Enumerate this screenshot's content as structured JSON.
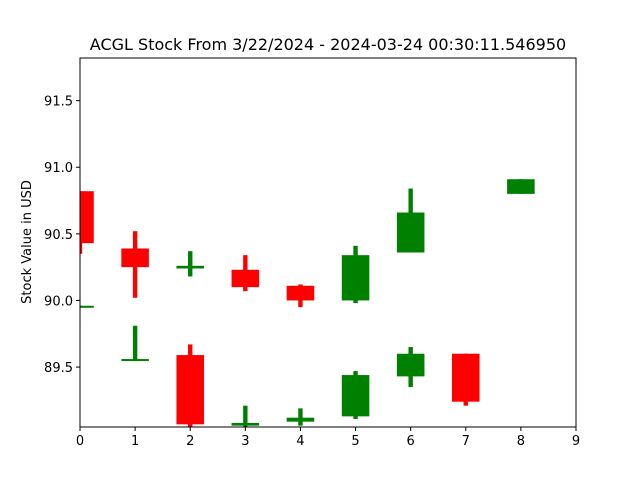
{
  "chart_data": {
    "type": "candlestick",
    "title": "ACGL Stock From 3/22/2024 - 2024-03-24 00:30:11.546950",
    "xlabel": "",
    "ylabel": "Stock Value in USD",
    "xlim": [
      0,
      9
    ],
    "ylim": [
      89.05,
      91.82
    ],
    "x_ticks": [
      "0",
      "1",
      "2",
      "3",
      "4",
      "5",
      "6",
      "7",
      "8",
      "9"
    ],
    "y_ticks": [
      "89.5",
      "90.0",
      "90.5",
      "91.0",
      "91.5"
    ],
    "grid": false,
    "colors": {
      "up": "#008000",
      "down": "#ff0000"
    },
    "candles": [
      {
        "x": 0,
        "open": 90.82,
        "close": 90.43,
        "high": 90.82,
        "low": 90.35,
        "color": "down"
      },
      {
        "x": 0,
        "open": 89.95,
        "close": 89.96,
        "high": 89.96,
        "low": 89.95,
        "color": "up"
      },
      {
        "x": 1,
        "open": 90.39,
        "close": 90.25,
        "high": 90.52,
        "low": 90.02,
        "color": "down"
      },
      {
        "x": 1,
        "open": 89.55,
        "close": 89.56,
        "high": 89.81,
        "low": 89.55,
        "color": "up"
      },
      {
        "x": 2,
        "open": 90.24,
        "close": 90.26,
        "high": 90.37,
        "low": 90.18,
        "color": "up"
      },
      {
        "x": 2,
        "open": 89.59,
        "close": 89.07,
        "high": 89.67,
        "low": 89.05,
        "color": "down"
      },
      {
        "x": 3,
        "open": 90.23,
        "close": 90.1,
        "high": 90.34,
        "low": 90.07,
        "color": "down"
      },
      {
        "x": 3,
        "open": 89.06,
        "close": 89.08,
        "high": 89.21,
        "low": 89.05,
        "color": "up"
      },
      {
        "x": 4,
        "open": 90.11,
        "close": 90.0,
        "high": 90.12,
        "low": 89.95,
        "color": "down"
      },
      {
        "x": 4,
        "open": 89.09,
        "close": 89.12,
        "high": 89.19,
        "low": 89.06,
        "color": "up"
      },
      {
        "x": 5,
        "open": 90.0,
        "close": 90.34,
        "high": 90.41,
        "low": 89.98,
        "color": "up"
      },
      {
        "x": 5,
        "open": 89.13,
        "close": 89.44,
        "high": 89.47,
        "low": 89.11,
        "color": "up"
      },
      {
        "x": 6,
        "open": 90.36,
        "close": 90.66,
        "high": 90.84,
        "low": 90.36,
        "color": "up"
      },
      {
        "x": 6,
        "open": 89.43,
        "close": 89.6,
        "high": 89.65,
        "low": 89.35,
        "color": "up"
      },
      {
        "x": 7,
        "open": 89.6,
        "close": 89.24,
        "high": 89.6,
        "low": 89.21,
        "color": "down"
      },
      {
        "x": 8,
        "open": 90.8,
        "close": 90.91,
        "high": 90.91,
        "low": 90.8,
        "color": "up"
      }
    ]
  }
}
